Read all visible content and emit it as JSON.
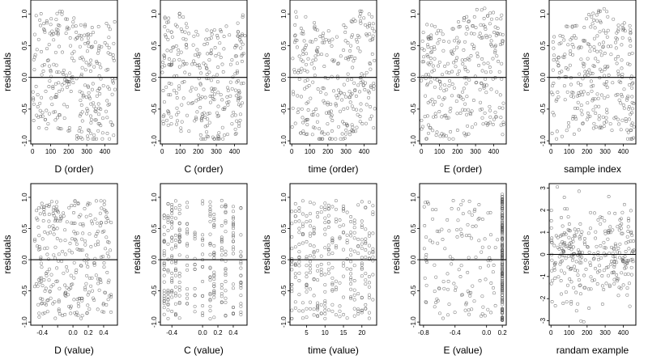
{
  "figure": {
    "panel_count": 10
  },
  "chart_data": [
    {
      "type": "scatter",
      "xlabel": "D (order)",
      "ylabel": "residuals",
      "xlim": [
        -10,
        470
      ],
      "ylim": [
        -1.05,
        1.22
      ],
      "xticks": [
        0,
        100,
        200,
        300,
        400
      ],
      "xtick_labels": [
        "0",
        "100",
        "200",
        "300",
        "400"
      ],
      "yticks": [
        -1.0,
        -0.5,
        0.0,
        0.5,
        1.0
      ],
      "ytick_labels": [
        "-1.0",
        "-0.5",
        "0.0",
        "0.5",
        "1.0"
      ],
      "reference_line_y": 0,
      "points_pattern": "order",
      "sample_points": [
        [
          20,
          0.7
        ],
        [
          100,
          -0.4
        ],
        [
          230,
          0.3
        ],
        [
          330,
          -0.6
        ],
        [
          440,
          1.1
        ]
      ]
    },
    {
      "type": "scatter",
      "xlabel": "C (order)",
      "ylabel": "residuals",
      "xlim": [
        -10,
        470
      ],
      "ylim": [
        -1.05,
        1.22
      ],
      "xticks": [
        0,
        100,
        200,
        300,
        400
      ],
      "xtick_labels": [
        "0",
        "100",
        "200",
        "300",
        "400"
      ],
      "yticks": [
        -1.0,
        -0.5,
        0.0,
        0.5,
        1.0
      ],
      "ytick_labels": [
        "-1.0",
        "-0.5",
        "0.0",
        "0.5",
        "1.0"
      ],
      "reference_line_y": 0,
      "points_pattern": "order",
      "sample_points": [
        [
          60,
          -0.5
        ],
        [
          150,
          0.2
        ],
        [
          230,
          0.8
        ],
        [
          300,
          -0.2
        ],
        [
          440,
          -0.7
        ]
      ]
    },
    {
      "type": "scatter",
      "xlabel": "time (order)",
      "ylabel": "residuals",
      "xlim": [
        -10,
        470
      ],
      "ylim": [
        -1.05,
        1.22
      ],
      "xticks": [
        0,
        100,
        200,
        300,
        400
      ],
      "xtick_labels": [
        "0",
        "100",
        "200",
        "300",
        "400"
      ],
      "yticks": [
        -1.0,
        -0.5,
        0.0,
        0.5,
        1.0
      ],
      "ytick_labels": [
        "-1.0",
        "-0.5",
        "0.0",
        "0.5",
        "1.0"
      ],
      "reference_line_y": 0,
      "points_pattern": "order",
      "sample_points": [
        [
          50,
          0.4
        ],
        [
          130,
          -0.5
        ],
        [
          250,
          0.9
        ],
        [
          350,
          -0.3
        ],
        [
          430,
          -0.8
        ]
      ]
    },
    {
      "type": "scatter",
      "xlabel": "E (order)",
      "ylabel": "residuals",
      "xlim": [
        -10,
        470
      ],
      "ylim": [
        -1.05,
        1.22
      ],
      "xticks": [
        0,
        100,
        200,
        300,
        400
      ],
      "xtick_labels": [
        "0",
        "100",
        "200",
        "300",
        "400"
      ],
      "yticks": [
        -1.0,
        -0.5,
        0.0,
        0.5,
        1.0
      ],
      "ytick_labels": [
        "-1.0",
        "-0.5",
        "0.0",
        "0.5",
        "1.0"
      ],
      "reference_line_y": 0,
      "points_pattern": "order",
      "sample_points": [
        [
          30,
          0.6
        ],
        [
          110,
          -0.4
        ],
        [
          220,
          0.3
        ],
        [
          320,
          -0.6
        ],
        [
          420,
          0.5
        ]
      ]
    },
    {
      "type": "scatter",
      "xlabel": "sample index",
      "ylabel": "residuals",
      "xlim": [
        -10,
        470
      ],
      "ylim": [
        -1.05,
        1.22
      ],
      "xticks": [
        0,
        100,
        200,
        300,
        400
      ],
      "xtick_labels": [
        "0",
        "100",
        "200",
        "300",
        "400"
      ],
      "yticks": [
        -1.0,
        -0.5,
        0.0,
        0.5,
        1.0
      ],
      "ytick_labels": [
        "-1.0",
        "-0.5",
        "0.0",
        "0.5",
        "1.0"
      ],
      "reference_line_y": 0,
      "points_pattern": "order",
      "sample_points": [
        [
          10,
          0.5
        ],
        [
          100,
          -0.3
        ],
        [
          200,
          0.2
        ],
        [
          320,
          -0.5
        ],
        [
          450,
          0.4
        ]
      ]
    },
    {
      "type": "scatter",
      "xlabel": "D (value)",
      "ylabel": "residuals",
      "xlim": [
        -0.55,
        0.58
      ],
      "ylim": [
        -1.05,
        1.22
      ],
      "xticks": [
        -0.4,
        -0.2,
        0.0,
        0.2,
        0.4
      ],
      "xtick_labels": [
        "-0.4",
        "",
        "0.0",
        "0.2",
        "0.4"
      ],
      "yticks": [
        -1.0,
        -0.5,
        0.0,
        0.5,
        1.0
      ],
      "ytick_labels": [
        "-1.0",
        "-0.5",
        "0.0",
        "0.5",
        "1.0"
      ],
      "reference_line_y": 0,
      "points_pattern": "uniform",
      "sample_points": [
        [
          -0.4,
          0.2
        ],
        [
          -0.1,
          -0.6
        ],
        [
          0.1,
          0.5
        ],
        [
          0.1,
          -0.4
        ],
        [
          0.4,
          0.3
        ]
      ]
    },
    {
      "type": "scatter",
      "xlabel": "C (value)",
      "ylabel": "residuals",
      "xlim": [
        -0.55,
        0.58
      ],
      "ylim": [
        -1.05,
        1.22
      ],
      "xticks": [
        -0.4,
        0.0,
        0.2,
        0.4
      ],
      "xtick_labels": [
        "-0.4",
        "0.0",
        "0.2",
        "0.4"
      ],
      "yticks": [
        -1.0,
        -0.5,
        0.0,
        0.5,
        1.0
      ],
      "ytick_labels": [
        "-1.0",
        "-0.5",
        "0.0",
        "0.5",
        "1.0"
      ],
      "reference_line_y": 0,
      "points_pattern": "columns",
      "columns_x": [
        -0.5,
        -0.45,
        -0.4,
        -0.35,
        -0.3,
        -0.2,
        -0.1,
        0.0,
        0.1,
        0.15,
        0.25,
        0.3,
        0.4,
        0.5
      ],
      "sample_points": [
        [
          -0.5,
          0.2
        ],
        [
          -0.3,
          -0.5
        ],
        [
          0.0,
          0.7
        ],
        [
          0.3,
          -0.2
        ],
        [
          0.5,
          -0.5
        ]
      ]
    },
    {
      "type": "scatter",
      "xlabel": "time (value)",
      "ylabel": "residuals",
      "xlim": [
        0.5,
        24
      ],
      "ylim": [
        -1.05,
        1.22
      ],
      "xticks": [
        5,
        10,
        15,
        20
      ],
      "xtick_labels": [
        "5",
        "10",
        "15",
        "20"
      ],
      "yticks": [
        -1.0,
        -0.5,
        0.0,
        0.5,
        1.0
      ],
      "ytick_labels": [
        "-1.0",
        "-0.5",
        "0.0",
        "0.5",
        "1.0"
      ],
      "reference_line_y": 0,
      "points_pattern": "columns",
      "columns_x": [
        1,
        2,
        3,
        4,
        5,
        6,
        7,
        8,
        9,
        10,
        11,
        12,
        13,
        14,
        15,
        16,
        17,
        18,
        19,
        20,
        21,
        22,
        23
      ],
      "sample_points": [
        [
          3,
          0.3
        ],
        [
          8,
          -0.4
        ],
        [
          12,
          0.5
        ],
        [
          17,
          -0.6
        ],
        [
          22,
          0.2
        ]
      ]
    },
    {
      "type": "scatter",
      "xlabel": "E (value)",
      "ylabel": "residuals",
      "xlim": [
        -0.85,
        0.25
      ],
      "ylim": [
        -1.05,
        1.22
      ],
      "xticks": [
        -0.8,
        -0.4,
        0.0,
        0.2
      ],
      "xtick_labels": [
        "-0.8",
        "-0.4",
        "0.0",
        "0.2"
      ],
      "yticks": [
        -1.0,
        -0.5,
        0.0,
        0.5,
        1.0
      ],
      "ytick_labels": [
        "-1.0",
        "-0.5",
        "0.0",
        "0.5",
        "1.0"
      ],
      "reference_line_y": 0,
      "points_pattern": "dense_column",
      "dense_x": 0.2,
      "sample_points": [
        [
          -0.8,
          0.1
        ],
        [
          -0.5,
          -0.3
        ],
        [
          -0.2,
          0.6
        ],
        [
          0.2,
          1.0
        ],
        [
          0.2,
          -1.0
        ]
      ]
    },
    {
      "type": "scatter",
      "xlabel": "randam example",
      "ylabel": "residuals",
      "xlim": [
        -10,
        470
      ],
      "ylim": [
        -3.2,
        3.2
      ],
      "xticks": [
        0,
        100,
        200,
        300,
        400
      ],
      "xtick_labels": [
        "0",
        "100",
        "200",
        "300",
        "400"
      ],
      "yticks": [
        -3,
        -2,
        -1,
        0,
        1,
        2,
        3
      ],
      "ytick_labels": [
        "-3",
        "-2",
        "-1",
        "0",
        "1",
        "2",
        "3"
      ],
      "reference_line_y": 0,
      "points_pattern": "normal",
      "sample_points": [
        [
          30,
          1.2
        ],
        [
          120,
          -1.5
        ],
        [
          220,
          0.4
        ],
        [
          340,
          -0.8
        ],
        [
          440,
          2.5
        ]
      ]
    }
  ]
}
